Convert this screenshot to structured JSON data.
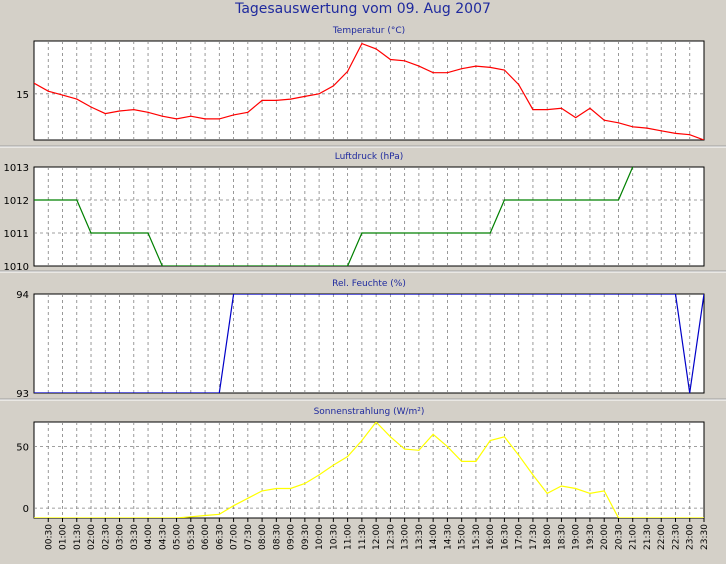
{
  "title": "Tagesauswertung vom 09. Aug 2007",
  "colors": {
    "background": "#d4d0c8",
    "plot_bg": "#ffffff",
    "title": "#1f2a9e",
    "grid": "#808080",
    "temperature": "#ff0000",
    "pressure": "#008000",
    "humidity": "#0000c8",
    "radiation": "#ffff00"
  },
  "x_ticks": [
    "00:30",
    "01:00",
    "01:30",
    "02:00",
    "02:30",
    "03:00",
    "03:30",
    "04:00",
    "04:30",
    "05:00",
    "05:30",
    "06:00",
    "06:30",
    "07:00",
    "07:30",
    "08:00",
    "08:30",
    "09:00",
    "09:30",
    "10:00",
    "10:30",
    "11:00",
    "11:30",
    "12:00",
    "12:30",
    "13:00",
    "13:30",
    "14:00",
    "14:30",
    "15:00",
    "15:30",
    "16:00",
    "16:30",
    "17:00",
    "17:30",
    "18:00",
    "18:30",
    "19:00",
    "19:30",
    "20:00",
    "20:30",
    "21:00",
    "21:30",
    "22:00",
    "22:30",
    "23:00",
    "23:30"
  ],
  "chart_data": [
    {
      "type": "line",
      "title": "Temperatur (°C)",
      "color": "#ff0000",
      "ylim": [
        13.25,
        17.0
      ],
      "yticks": [
        15
      ],
      "x_hours": [
        0.0,
        0.5,
        1.0,
        1.5,
        2.0,
        2.5,
        3.0,
        3.5,
        4.0,
        4.5,
        5.0,
        5.5,
        6.0,
        6.5,
        7.0,
        7.5,
        8.0,
        8.5,
        9.0,
        9.5,
        10.0,
        10.5,
        11.0,
        11.5,
        12.0,
        12.5,
        13.0,
        13.5,
        14.0,
        14.5,
        15.0,
        15.5,
        16.0,
        16.5,
        17.0,
        17.5,
        18.0,
        18.5,
        19.0,
        19.5,
        20.0,
        20.5,
        21.0,
        21.5,
        22.0,
        22.5,
        23.0,
        23.5
      ],
      "values": [
        15.4,
        15.1,
        14.95,
        14.8,
        14.5,
        14.25,
        14.35,
        14.4,
        14.3,
        14.15,
        14.05,
        14.15,
        14.05,
        14.05,
        14.2,
        14.3,
        14.75,
        14.75,
        14.8,
        14.9,
        15.0,
        15.3,
        15.85,
        16.9,
        16.7,
        16.3,
        16.25,
        16.05,
        15.8,
        15.8,
        15.95,
        16.05,
        16.0,
        15.9,
        15.35,
        14.4,
        14.4,
        14.45,
        14.1,
        14.45,
        14.0,
        13.9,
        13.75,
        13.7,
        13.6,
        13.5,
        13.45,
        13.25
      ]
    },
    {
      "type": "line",
      "title": "Luftdruck (hPa)",
      "color": "#008000",
      "ylim": [
        1010,
        1013
      ],
      "yticks": [
        1010,
        1011,
        1012,
        1013
      ],
      "x_hours": [
        0.0,
        1.5,
        2.0,
        4.0,
        4.5,
        11.0,
        11.5,
        16.0,
        16.5,
        20.5,
        21.0
      ],
      "values": [
        1012,
        1012,
        1011,
        1011,
        1010,
        1010,
        1011,
        1011,
        1012,
        1012,
        1013
      ]
    },
    {
      "type": "line",
      "title": "Rel. Feuchte (%)",
      "color": "#0000c8",
      "ylim": [
        93,
        94
      ],
      "yticks": [
        93,
        94
      ],
      "x_hours": [
        0.0,
        6.5,
        7.0,
        22.5,
        23.0,
        23.5
      ],
      "values": [
        93,
        93,
        94,
        94,
        93,
        94
      ]
    },
    {
      "type": "line",
      "title": "Sonnenstrahlung (W/m²)",
      "color": "#ffff00",
      "ylim": [
        -8,
        70
      ],
      "yticks": [
        0,
        50
      ],
      "x_hours": [
        0.0,
        5.0,
        5.5,
        6.0,
        6.5,
        7.0,
        7.5,
        8.0,
        8.5,
        9.0,
        9.5,
        10.0,
        10.5,
        11.0,
        11.5,
        12.0,
        12.5,
        13.0,
        13.5,
        14.0,
        14.5,
        15.0,
        15.5,
        16.0,
        16.5,
        17.0,
        17.5,
        18.0,
        18.5,
        19.0,
        19.5,
        20.0,
        20.5,
        21.0,
        23.5
      ],
      "values": [
        -8,
        -8,
        -7,
        -6,
        -5,
        2,
        8,
        14,
        16,
        16,
        20,
        27,
        35,
        42,
        55,
        70,
        58,
        48,
        47,
        60,
        50,
        38,
        38,
        55,
        58,
        43,
        27,
        12,
        18,
        16,
        12,
        14,
        -8,
        -8,
        -8
      ]
    }
  ]
}
